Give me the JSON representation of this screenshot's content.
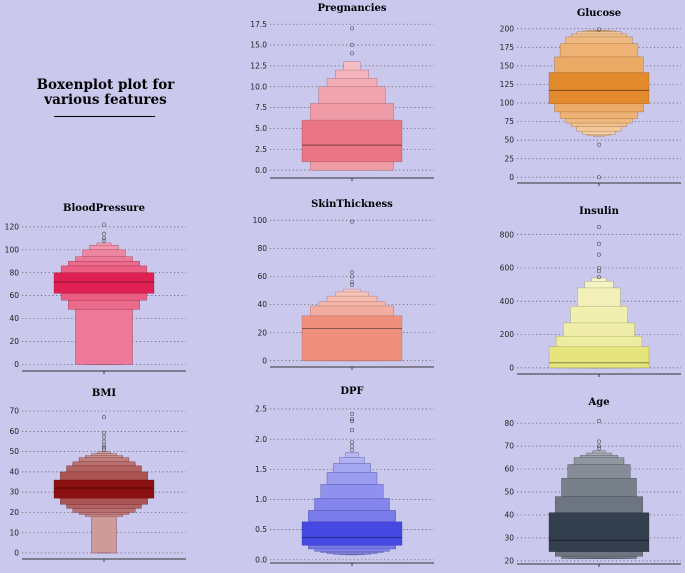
{
  "figure_title": "Boxenplot plot for various features",
  "chart_data": [
    {
      "type": "boxen",
      "title": "Pregnancies",
      "color": "#ea7585",
      "ylim": [
        -0.7,
        18
      ],
      "yticks": [
        0.0,
        2.5,
        5.0,
        7.5,
        10.0,
        12.5,
        15.0,
        17.5
      ],
      "tick_decimals": 1,
      "median": 3,
      "boxes": [
        [
          1,
          6
        ],
        [
          0,
          8
        ],
        [
          0,
          10
        ],
        [
          0,
          11
        ],
        [
          0,
          12
        ],
        [
          0,
          13
        ]
      ],
      "outliers": [
        14,
        15,
        17
      ]
    },
    {
      "type": "boxen",
      "title": "Glucose",
      "color": "#e38a2c",
      "ylim": [
        -5,
        205
      ],
      "yticks": [
        0,
        25,
        50,
        75,
        100,
        125,
        150,
        175,
        200
      ],
      "tick_decimals": 0,
      "median": 117,
      "boxes": [
        [
          99,
          141
        ],
        [
          88,
          162
        ],
        [
          79,
          180
        ],
        [
          73,
          189
        ],
        [
          68,
          193
        ],
        [
          62,
          196
        ],
        [
          58,
          197
        ],
        [
          56,
          198
        ],
        [
          55,
          198
        ]
      ],
      "outliers": [
        44,
        0,
        199
      ]
    },
    {
      "type": "boxen",
      "title": "BloodPressure",
      "color": "#e01f52",
      "ylim": [
        -4,
        126
      ],
      "yticks": [
        0,
        20,
        40,
        60,
        80,
        100,
        120
      ],
      "tick_decimals": 0,
      "median": 72,
      "boxes": [
        [
          62,
          80
        ],
        [
          56,
          86
        ],
        [
          48,
          90
        ],
        [
          0,
          94
        ],
        [
          0,
          100
        ],
        [
          0,
          104
        ],
        [
          0,
          106
        ]
      ],
      "outliers": [
        108,
        110,
        114,
        122
      ]
    },
    {
      "type": "boxen",
      "title": "SkinThickness",
      "color": "#ef8f7d",
      "ylim": [
        -3,
        103
      ],
      "yticks": [
        0,
        20,
        40,
        60,
        80,
        100
      ],
      "tick_decimals": 0,
      "median": 23,
      "boxes": [
        [
          0,
          32
        ],
        [
          0,
          39
        ],
        [
          0,
          42
        ],
        [
          0,
          46
        ],
        [
          0,
          49
        ],
        [
          0,
          51
        ]
      ],
      "outliers": [
        54,
        56,
        60,
        63,
        99
      ]
    },
    {
      "type": "boxen",
      "title": "Insulin",
      "color": "#e6e47c",
      "ylim": [
        -25,
        870
      ],
      "yticks": [
        0,
        200,
        400,
        600,
        800
      ],
      "tick_decimals": 0,
      "median": 30,
      "boxes": [
        [
          0,
          127
        ],
        [
          0,
          190
        ],
        [
          0,
          270
        ],
        [
          0,
          370
        ],
        [
          0,
          480
        ],
        [
          0,
          520
        ],
        [
          0,
          540
        ]
      ],
      "outliers": [
        545,
        580,
        600,
        680,
        745,
        846
      ]
    },
    {
      "type": "boxen",
      "title": "BMI",
      "color": "#8b1010",
      "ylim": [
        -2,
        73
      ],
      "yticks": [
        0,
        10,
        20,
        30,
        40,
        50,
        60,
        70
      ],
      "tick_decimals": 0,
      "median": 32,
      "boxes": [
        [
          27,
          36
        ],
        [
          24,
          40
        ],
        [
          22,
          43
        ],
        [
          20,
          45
        ],
        [
          19,
          47
        ],
        [
          18,
          48
        ],
        [
          0,
          49
        ],
        [
          0,
          50
        ]
      ],
      "outliers": [
        51,
        52,
        53,
        55,
        57,
        59,
        67
      ]
    },
    {
      "type": "boxen",
      "title": "DPF",
      "color": "#4648e2",
      "ylim": [
        -0.02,
        2.6
      ],
      "yticks": [
        0.0,
        0.5,
        1.0,
        1.5,
        2.0,
        2.5
      ],
      "tick_decimals": 1,
      "median": 0.37,
      "boxes": [
        [
          0.24,
          0.63
        ],
        [
          0.18,
          0.82
        ],
        [
          0.14,
          1.02
        ],
        [
          0.12,
          1.25
        ],
        [
          0.1,
          1.45
        ],
        [
          0.09,
          1.6
        ],
        [
          0.085,
          1.7
        ],
        [
          0.08,
          1.78
        ]
      ],
      "outliers": [
        1.82,
        1.88,
        1.95,
        2.15,
        2.3,
        2.33,
        2.42
      ]
    },
    {
      "type": "boxen",
      "title": "Age",
      "color": "#333f4e",
      "ylim": [
        19.5,
        84
      ],
      "yticks": [
        20,
        30,
        40,
        50,
        60,
        70,
        80
      ],
      "tick_decimals": 0,
      "median": 29,
      "boxes": [
        [
          24,
          41
        ],
        [
          22,
          48
        ],
        [
          21,
          56
        ],
        [
          21,
          62
        ],
        [
          21,
          65
        ],
        [
          21,
          66
        ],
        [
          21,
          67
        ],
        [
          21,
          68
        ]
      ],
      "outliers": [
        69,
        70,
        72,
        81
      ]
    }
  ]
}
